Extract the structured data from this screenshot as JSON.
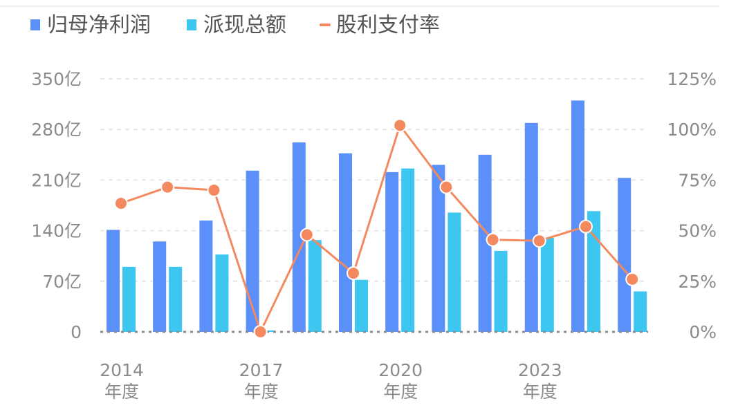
{
  "chart_data": {
    "type": "bar",
    "categories": [
      "2014年度",
      "2015年度",
      "2016年度",
      "2017年度",
      "2018年度",
      "2019年度",
      "2020年度",
      "2021年度",
      "2022年度",
      "2023年度",
      "2024年度",
      "2025年度"
    ],
    "x_tick_labels": [
      {
        "index": 0,
        "year": "2014",
        "suffix": "年度"
      },
      {
        "index": 3,
        "year": "2017",
        "suffix": "年度"
      },
      {
        "index": 6,
        "year": "2020",
        "suffix": "年度"
      },
      {
        "index": 9,
        "year": "2023",
        "suffix": "年度"
      }
    ],
    "series": [
      {
        "name": "归母净利润",
        "type": "bar",
        "axis": "left",
        "color": "#5b8ff9",
        "values": [
          141,
          125,
          154,
          223,
          262,
          247,
          221,
          231,
          245,
          289,
          320,
          213
        ]
      },
      {
        "name": "派现总额",
        "type": "bar",
        "axis": "left",
        "color": "#3dc6f0",
        "values": [
          90,
          90,
          107,
          2,
          127,
          72,
          226,
          165,
          112,
          130,
          167,
          56
        ]
      },
      {
        "name": "股利支付率",
        "type": "line",
        "axis": "right",
        "color": "#f4895f",
        "values": [
          63.5,
          71.5,
          70,
          0,
          48,
          29,
          102,
          71.5,
          45.5,
          45,
          52,
          26
        ]
      }
    ],
    "y_left": {
      "ylim": [
        0,
        350
      ],
      "ticks": [
        0,
        70,
        140,
        210,
        280,
        350
      ],
      "tick_labels": [
        "0",
        "70亿",
        "140亿",
        "210亿",
        "280亿",
        "350亿"
      ]
    },
    "y_right": {
      "ylim": [
        0,
        125
      ],
      "ticks": [
        0,
        25,
        50,
        75,
        100,
        125
      ],
      "tick_labels": [
        "0%",
        "25%",
        "50%",
        "75%",
        "100%",
        "125%"
      ]
    },
    "legend_position": "top-left",
    "grid": true
  }
}
